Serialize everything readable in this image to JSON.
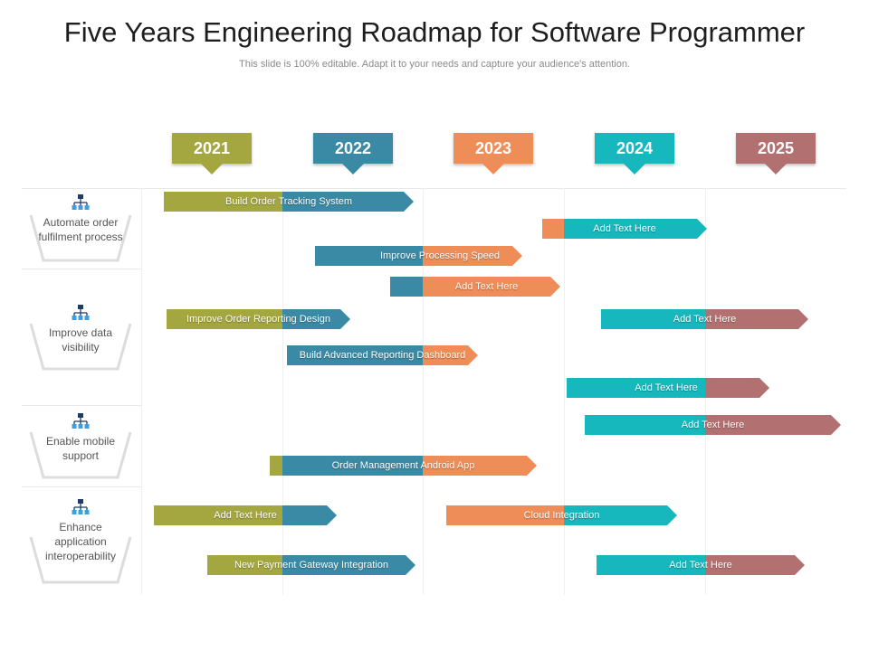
{
  "title": "Five Years Engineering Roadmap for Software Programmer",
  "subtitle": "This slide is 100% editable. Adapt it to your needs and capture your audience's attention.",
  "colors": {
    "olive": "#a4a63f",
    "blue": "#3b8aa5",
    "orange": "#ef8d58",
    "teal": "#17b8bd",
    "rose": "#b37070"
  },
  "years": [
    {
      "label": "2021",
      "color": "#a4a63f"
    },
    {
      "label": "2022",
      "color": "#3b8aa5"
    },
    {
      "label": "2023",
      "color": "#ef8d58"
    },
    {
      "label": "2024",
      "color": "#17b8bd"
    },
    {
      "label": "2025",
      "color": "#b37070"
    }
  ],
  "categories": [
    {
      "label": "Automate order fulfilment process",
      "icon": "org-chart-icon"
    },
    {
      "label": "Improve data visibility",
      "icon": "org-chart-icon"
    },
    {
      "label": "Enable mobile support",
      "icon": "org-chart-icon"
    },
    {
      "label": "Enhance application interoperability",
      "icon": "org-chart-icon"
    }
  ],
  "bars": [
    {
      "label": "Build Order Tracking System"
    },
    {
      "label": "Add Text Here"
    },
    {
      "label": "Improve Processing Speed"
    },
    {
      "label": "Add Text Here"
    },
    {
      "label": "Improve Order Reporting Design"
    },
    {
      "label": "Add Text Here"
    },
    {
      "label": "Build Advanced Reporting Dashboard"
    },
    {
      "label": "Add Text Here"
    },
    {
      "label": "Add Text Here"
    },
    {
      "label": "Order Management Android App"
    },
    {
      "label": "Add Text Here"
    },
    {
      "label": "Cloud Integration"
    },
    {
      "label": "New Payment Gateway Integration"
    },
    {
      "label": "Add Text Here"
    }
  ]
}
